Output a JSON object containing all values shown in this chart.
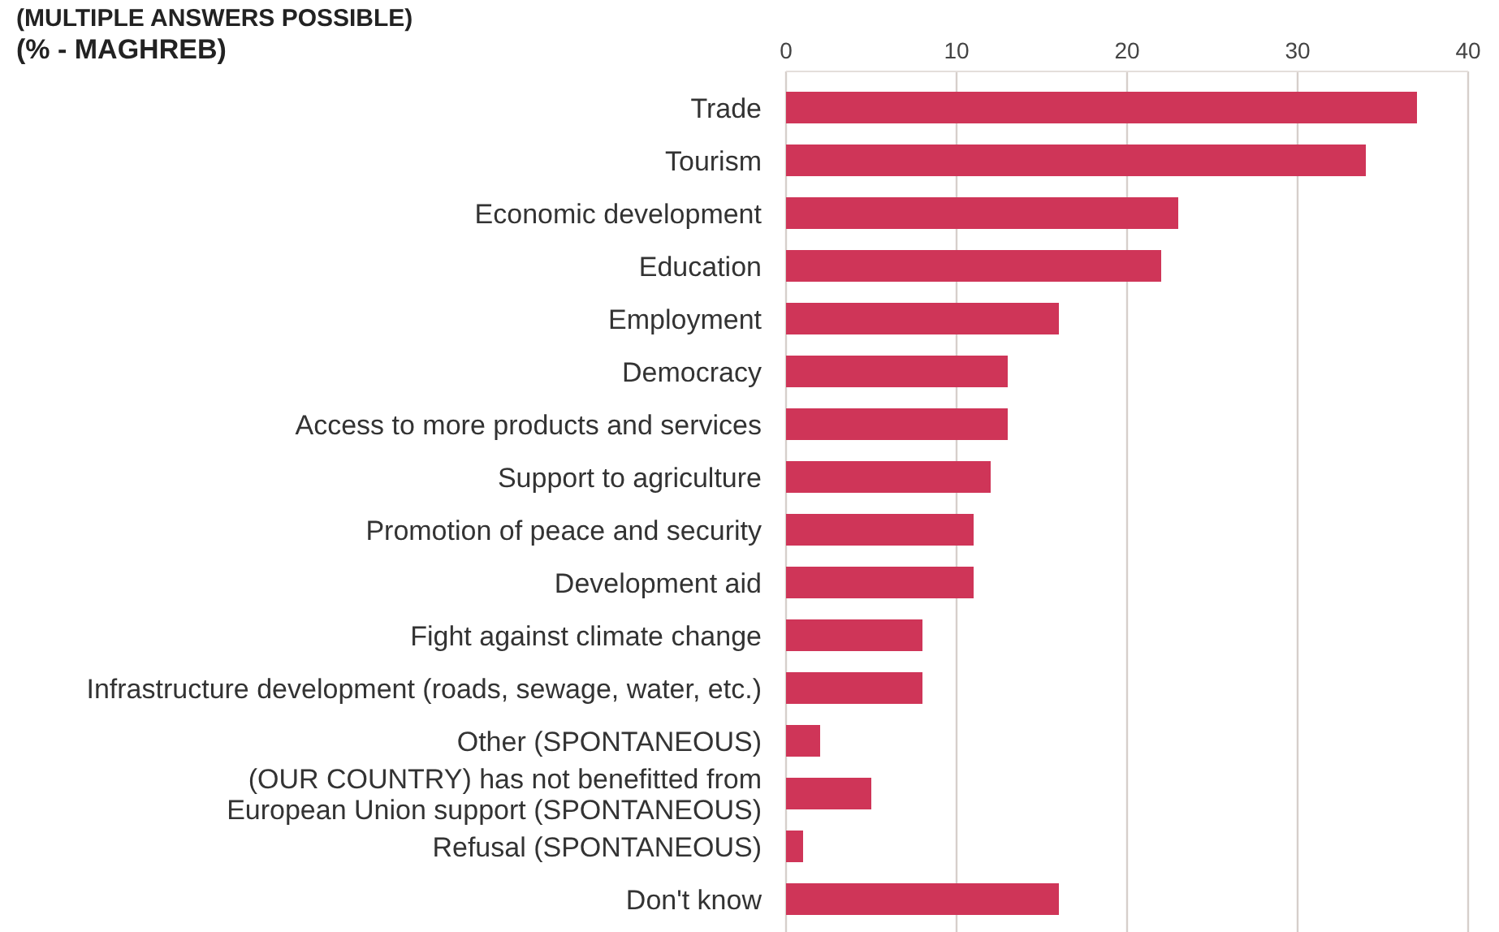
{
  "chart_data": {
    "type": "bar",
    "orientation": "horizontal",
    "title": "(MULTIPLE ANSWERS POSSIBLE)",
    "subtitle": "(% - MAGHREB)",
    "categories": [
      "Trade",
      "Tourism",
      "Economic development",
      "Education",
      "Employment",
      "Democracy",
      "Access to more products and services",
      "Support to agriculture",
      "Promotion of peace and security",
      "Development aid",
      "Fight against climate change",
      "Infrastructure development (roads, sewage, water, etc.)",
      "Other (SPONTANEOUS)",
      "(OUR COUNTRY) has not benefitted from European Union support (SPONTANEOUS)",
      "Refusal (SPONTANEOUS)",
      "Don't know"
    ],
    "values": [
      37,
      34,
      23,
      22,
      16,
      13,
      13,
      12,
      11,
      11,
      8,
      8,
      2,
      5,
      1,
      16
    ],
    "color": "#cf3558",
    "xlim": [
      0,
      40
    ],
    "xticks": [
      0,
      10,
      20,
      30,
      40
    ],
    "grid": "x"
  }
}
